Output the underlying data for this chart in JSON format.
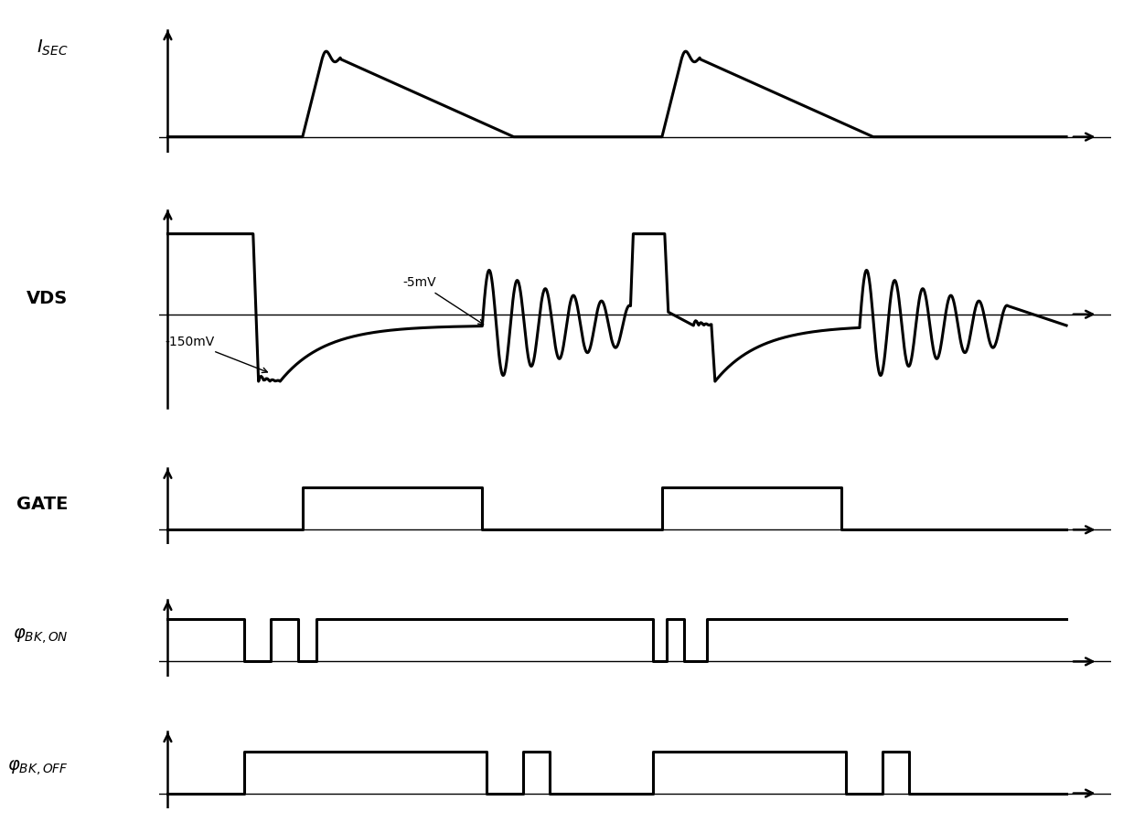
{
  "bg_color": "#ffffff",
  "line_color": "#000000",
  "lw_signal": 2.2,
  "lw_axis": 1.8,
  "lw_ref": 1.0,
  "T": 10.0,
  "isec_peak": 1.0,
  "isec_ripple_amp": 0.1,
  "vds_high": 0.72,
  "vds_deep": -0.6,
  "vds_sn": -0.1,
  "vds_osc_amp": 0.52,
  "vds_osc_freq": 3.2,
  "label_isec": "$I_{SEC}$",
  "label_vds": "VDS",
  "label_gate": "GATE",
  "label_phi_on": "$\\varphi_{BK,ON}$",
  "label_phi_off": "$\\varphi_{BK,OFF}$",
  "ann_minus5mv": "-5mV",
  "ann_minus150mv": "-150mV"
}
